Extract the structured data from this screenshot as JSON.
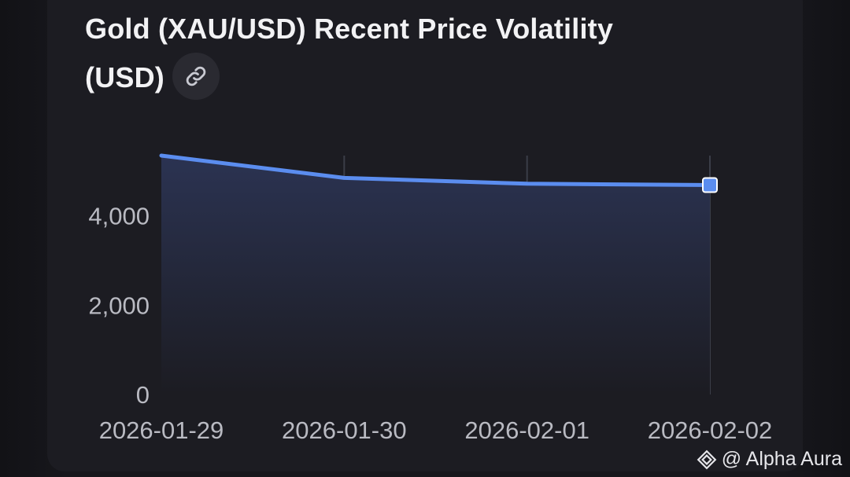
{
  "header": {
    "title": "Gold (XAU/USD) Recent Price Volatility (USD)",
    "link_icon": "link-icon"
  },
  "footer": {
    "logo_icon": "diamond-logo-icon",
    "credit": "@ Alpha Aura"
  },
  "colors": {
    "line": "#5b8def",
    "area_top": "#2b3352",
    "area_bottom": "#1c1c22",
    "grid": "#3a3d48",
    "tick_text": "#b9bac2"
  },
  "chart_data": {
    "type": "area",
    "title": "Gold (XAU/USD) Recent Price Volatility (USD)",
    "xlabel": "",
    "ylabel": "",
    "x": [
      "2026-01-29",
      "2026-01-30",
      "2026-02-01",
      "2026-02-02"
    ],
    "series": [
      {
        "values": [
          5350,
          4850,
          4720,
          4690
        ]
      }
    ],
    "yticks": [
      "0",
      "2,000",
      "4,000"
    ],
    "ytick_values": [
      0,
      2000,
      4000
    ],
    "ylim": [
      0,
      5350
    ],
    "grid": "vertical",
    "highlight_last_point": true
  }
}
